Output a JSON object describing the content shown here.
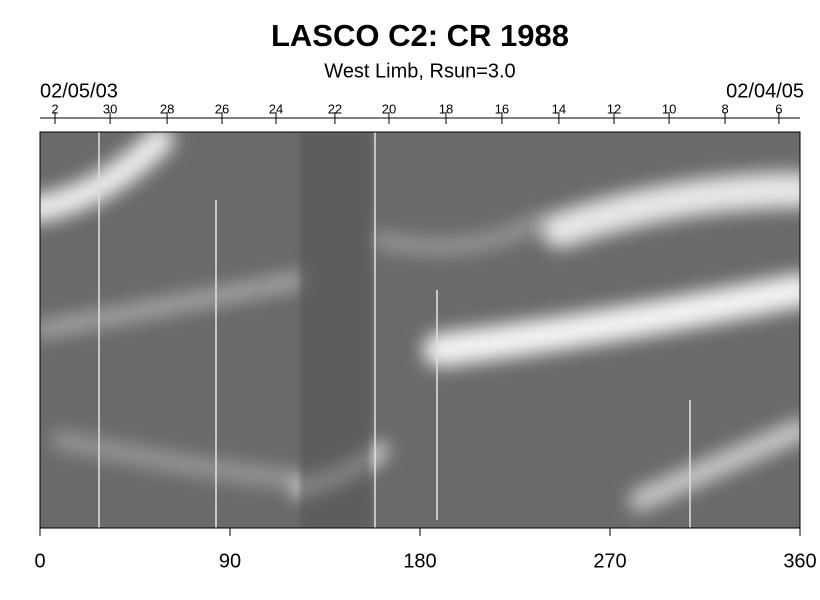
{
  "chart_data": {
    "type": "image",
    "title": "LASCO C2: CR 1988",
    "subtitle": "West Limb, Rsun=3.0",
    "start_date": "02/05/03",
    "end_date": "02/04/05",
    "xlim": [
      0,
      360
    ],
    "xticks": [
      0,
      90,
      180,
      270,
      360
    ],
    "top_ticks": [
      {
        "value": 7.1,
        "label": "2"
      },
      {
        "value": 33.2,
        "label": "30"
      },
      {
        "value": 60.2,
        "label": "28"
      },
      {
        "value": 86.2,
        "label": "26"
      },
      {
        "value": 111.8,
        "label": "24"
      },
      {
        "value": 139.7,
        "label": "22"
      },
      {
        "value": 165.3,
        "label": "20"
      },
      {
        "value": 192.3,
        "label": "18"
      },
      {
        "value": 218.8,
        "label": "16"
      },
      {
        "value": 245.8,
        "label": "14"
      },
      {
        "value": 271.9,
        "label": "12"
      },
      {
        "value": 298,
        "label": "10"
      },
      {
        "value": 324.5,
        "label": "8"
      },
      {
        "value": 350,
        "label": "6"
      }
    ]
  }
}
